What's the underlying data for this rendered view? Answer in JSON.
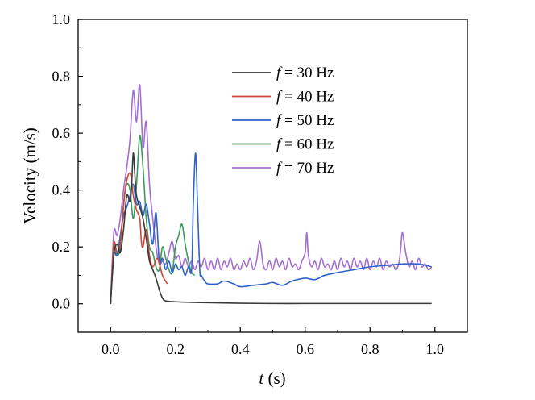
{
  "chart_data": {
    "type": "line",
    "title": "",
    "xlabel": {
      "var": "t",
      "unit": " (s)"
    },
    "ylabel": "Velocity (m/s)",
    "xlim": [
      -0.1,
      1.1
    ],
    "ylim": [
      -0.1,
      1.0
    ],
    "xticks": [
      "0.0",
      "0.2",
      "0.4",
      "0.6",
      "0.8",
      "1.0"
    ],
    "xtick_values": [
      0.0,
      0.2,
      0.4,
      0.6,
      0.8,
      1.0
    ],
    "yticks": [
      "0.0",
      "0.2",
      "0.4",
      "0.6",
      "0.8",
      "1.0"
    ],
    "ytick_values": [
      0.0,
      0.2,
      0.4,
      0.6,
      0.8,
      1.0
    ],
    "legend_position": "top-right",
    "series": [
      {
        "name": "f = 30 Hz",
        "var": "f",
        "label": " = 30 Hz",
        "color": "#3a3a3a",
        "points": [
          [
            0.0,
            0.0
          ],
          [
            0.01,
            0.17
          ],
          [
            0.02,
            0.21
          ],
          [
            0.03,
            0.18
          ],
          [
            0.04,
            0.26
          ],
          [
            0.05,
            0.38
          ],
          [
            0.06,
            0.36
          ],
          [
            0.065,
            0.42
          ],
          [
            0.07,
            0.53
          ],
          [
            0.075,
            0.45
          ],
          [
            0.08,
            0.38
          ],
          [
            0.09,
            0.34
          ],
          [
            0.1,
            0.3
          ],
          [
            0.11,
            0.23
          ],
          [
            0.12,
            0.15
          ],
          [
            0.13,
            0.12
          ],
          [
            0.14,
            0.09
          ],
          [
            0.15,
            0.05
          ],
          [
            0.16,
            0.02
          ],
          [
            0.17,
            0.01
          ],
          [
            0.2,
            0.007
          ],
          [
            0.25,
            0.005
          ],
          [
            0.3,
            0.004
          ],
          [
            0.4,
            0.002
          ],
          [
            0.5,
            0.001
          ],
          [
            0.6,
            0.001
          ],
          [
            0.7,
            0.001
          ],
          [
            0.8,
            0.001
          ],
          [
            0.9,
            0.001
          ],
          [
            0.99,
            0.001
          ]
        ]
      },
      {
        "name": "f = 40 Hz",
        "var": "f",
        "label": " = 40 Hz",
        "color": "#d0453a",
        "points": [
          [
            0.0,
            0.0
          ],
          [
            0.01,
            0.21
          ],
          [
            0.02,
            0.18
          ],
          [
            0.03,
            0.21
          ],
          [
            0.045,
            0.4
          ],
          [
            0.06,
            0.46
          ],
          [
            0.07,
            0.38
          ],
          [
            0.08,
            0.33
          ],
          [
            0.09,
            0.3
          ],
          [
            0.095,
            0.22
          ],
          [
            0.1,
            0.2
          ],
          [
            0.11,
            0.26
          ],
          [
            0.12,
            0.17
          ],
          [
            0.13,
            0.13
          ],
          [
            0.145,
            0.16
          ],
          [
            0.16,
            0.1
          ],
          [
            0.175,
            0.07
          ]
        ]
      },
      {
        "name": "f = 50 Hz",
        "var": "f",
        "label": " = 50 Hz",
        "color": "#2f63c9",
        "points": [
          [
            0.0,
            0.0
          ],
          [
            0.01,
            0.17
          ],
          [
            0.02,
            0.17
          ],
          [
            0.03,
            0.24
          ],
          [
            0.04,
            0.31
          ],
          [
            0.05,
            0.34
          ],
          [
            0.06,
            0.38
          ],
          [
            0.07,
            0.42
          ],
          [
            0.08,
            0.35
          ],
          [
            0.09,
            0.36
          ],
          [
            0.1,
            0.31
          ],
          [
            0.11,
            0.35
          ],
          [
            0.12,
            0.28
          ],
          [
            0.13,
            0.21
          ],
          [
            0.14,
            0.32
          ],
          [
            0.15,
            0.15
          ],
          [
            0.16,
            0.16
          ],
          [
            0.17,
            0.12
          ],
          [
            0.18,
            0.15
          ],
          [
            0.19,
            0.11
          ],
          [
            0.2,
            0.14
          ],
          [
            0.21,
            0.12
          ],
          [
            0.22,
            0.13
          ],
          [
            0.23,
            0.1
          ],
          [
            0.24,
            0.13
          ],
          [
            0.25,
            0.12
          ],
          [
            0.255,
            0.35
          ],
          [
            0.262,
            0.53
          ],
          [
            0.268,
            0.35
          ],
          [
            0.275,
            0.12
          ],
          [
            0.28,
            0.1
          ],
          [
            0.29,
            0.08
          ],
          [
            0.3,
            0.07
          ],
          [
            0.33,
            0.07
          ],
          [
            0.35,
            0.08
          ],
          [
            0.38,
            0.07
          ],
          [
            0.4,
            0.06
          ],
          [
            0.44,
            0.065
          ],
          [
            0.48,
            0.07
          ],
          [
            0.5,
            0.075
          ],
          [
            0.53,
            0.065
          ],
          [
            0.56,
            0.08
          ],
          [
            0.6,
            0.09
          ],
          [
            0.63,
            0.085
          ],
          [
            0.66,
            0.1
          ],
          [
            0.7,
            0.11
          ],
          [
            0.75,
            0.12
          ],
          [
            0.8,
            0.13
          ],
          [
            0.85,
            0.135
          ],
          [
            0.9,
            0.14
          ],
          [
            0.95,
            0.14
          ],
          [
            0.99,
            0.13
          ]
        ]
      },
      {
        "name": "f = 60 Hz",
        "var": "f",
        "label": " = 60 Hz",
        "color": "#3d9a5d",
        "points": [
          [
            0.0,
            0.0
          ],
          [
            0.01,
            0.2
          ],
          [
            0.02,
            0.17
          ],
          [
            0.03,
            0.2
          ],
          [
            0.04,
            0.35
          ],
          [
            0.05,
            0.42
          ],
          [
            0.06,
            0.4
          ],
          [
            0.07,
            0.3
          ],
          [
            0.08,
            0.42
          ],
          [
            0.09,
            0.59
          ],
          [
            0.1,
            0.48
          ],
          [
            0.11,
            0.3
          ],
          [
            0.12,
            0.2
          ],
          [
            0.13,
            0.18
          ],
          [
            0.14,
            0.13
          ],
          [
            0.15,
            0.12
          ],
          [
            0.16,
            0.2
          ],
          [
            0.17,
            0.16
          ],
          [
            0.18,
            0.12
          ],
          [
            0.19,
            0.11
          ],
          [
            0.2,
            0.2
          ],
          [
            0.21,
            0.24
          ],
          [
            0.22,
            0.28
          ],
          [
            0.23,
            0.21
          ],
          [
            0.24,
            0.15
          ],
          [
            0.25,
            0.11
          ],
          [
            0.26,
            0.1
          ]
        ]
      },
      {
        "name": "f = 70 Hz",
        "var": "f",
        "label": " = 70 Hz",
        "color": "#a46ed2",
        "points": [
          [
            0.0,
            0.0
          ],
          [
            0.01,
            0.25
          ],
          [
            0.02,
            0.24
          ],
          [
            0.03,
            0.3
          ],
          [
            0.04,
            0.4
          ],
          [
            0.05,
            0.48
          ],
          [
            0.06,
            0.58
          ],
          [
            0.07,
            0.75
          ],
          [
            0.08,
            0.64
          ],
          [
            0.09,
            0.77
          ],
          [
            0.1,
            0.55
          ],
          [
            0.11,
            0.64
          ],
          [
            0.12,
            0.42
          ],
          [
            0.13,
            0.3
          ],
          [
            0.14,
            0.2
          ],
          [
            0.15,
            0.14
          ],
          [
            0.16,
            0.15
          ],
          [
            0.17,
            0.14
          ],
          [
            0.18,
            0.18
          ],
          [
            0.19,
            0.22
          ],
          [
            0.2,
            0.16
          ],
          [
            0.21,
            0.17
          ],
          [
            0.22,
            0.13
          ],
          [
            0.23,
            0.16
          ],
          [
            0.24,
            0.13
          ],
          [
            0.25,
            0.15
          ],
          [
            0.26,
            0.12
          ],
          [
            0.27,
            0.15
          ],
          [
            0.28,
            0.13
          ],
          [
            0.29,
            0.16
          ],
          [
            0.3,
            0.12
          ],
          [
            0.31,
            0.15
          ],
          [
            0.32,
            0.12
          ],
          [
            0.33,
            0.16
          ],
          [
            0.34,
            0.12
          ],
          [
            0.35,
            0.15
          ],
          [
            0.36,
            0.13
          ],
          [
            0.37,
            0.16
          ],
          [
            0.38,
            0.12
          ],
          [
            0.39,
            0.14
          ],
          [
            0.4,
            0.12
          ],
          [
            0.41,
            0.15
          ],
          [
            0.42,
            0.13
          ],
          [
            0.43,
            0.16
          ],
          [
            0.44,
            0.12
          ],
          [
            0.45,
            0.15
          ],
          [
            0.46,
            0.22
          ],
          [
            0.47,
            0.14
          ],
          [
            0.48,
            0.12
          ],
          [
            0.49,
            0.15
          ],
          [
            0.5,
            0.12
          ],
          [
            0.51,
            0.16
          ],
          [
            0.52,
            0.13
          ],
          [
            0.53,
            0.15
          ],
          [
            0.54,
            0.12
          ],
          [
            0.55,
            0.16
          ],
          [
            0.56,
            0.13
          ],
          [
            0.57,
            0.14
          ],
          [
            0.58,
            0.12
          ],
          [
            0.59,
            0.15
          ],
          [
            0.6,
            0.18
          ],
          [
            0.605,
            0.25
          ],
          [
            0.61,
            0.17
          ],
          [
            0.62,
            0.13
          ],
          [
            0.63,
            0.15
          ],
          [
            0.64,
            0.12
          ],
          [
            0.65,
            0.16
          ],
          [
            0.66,
            0.13
          ],
          [
            0.67,
            0.14
          ],
          [
            0.68,
            0.12
          ],
          [
            0.69,
            0.15
          ],
          [
            0.7,
            0.12
          ],
          [
            0.71,
            0.16
          ],
          [
            0.72,
            0.13
          ],
          [
            0.73,
            0.15
          ],
          [
            0.74,
            0.12
          ],
          [
            0.75,
            0.16
          ],
          [
            0.76,
            0.13
          ],
          [
            0.77,
            0.15
          ],
          [
            0.78,
            0.12
          ],
          [
            0.79,
            0.16
          ],
          [
            0.8,
            0.12
          ],
          [
            0.81,
            0.15
          ],
          [
            0.82,
            0.13
          ],
          [
            0.83,
            0.16
          ],
          [
            0.84,
            0.12
          ],
          [
            0.85,
            0.15
          ],
          [
            0.86,
            0.13
          ],
          [
            0.87,
            0.14
          ],
          [
            0.88,
            0.12
          ],
          [
            0.89,
            0.15
          ],
          [
            0.895,
            0.2
          ],
          [
            0.9,
            0.25
          ],
          [
            0.91,
            0.18
          ],
          [
            0.92,
            0.13
          ],
          [
            0.93,
            0.15
          ],
          [
            0.94,
            0.12
          ],
          [
            0.95,
            0.16
          ],
          [
            0.96,
            0.13
          ],
          [
            0.97,
            0.14
          ],
          [
            0.98,
            0.12
          ],
          [
            0.99,
            0.13
          ]
        ]
      }
    ]
  }
}
